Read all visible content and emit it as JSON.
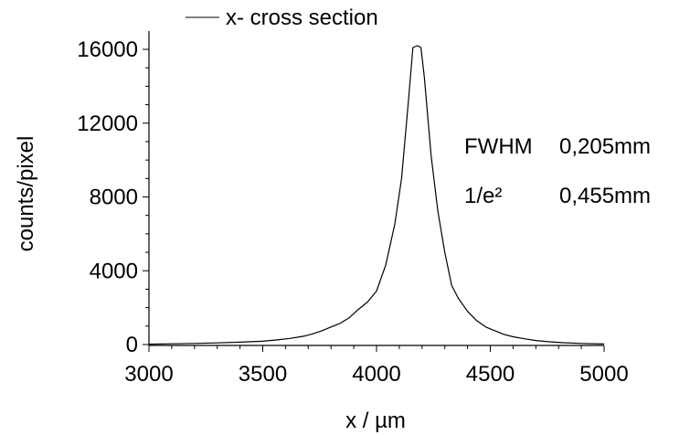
{
  "chart_data": {
    "type": "line",
    "title": "",
    "xlabel": "x / µm",
    "ylabel": "counts/pixel",
    "xlim": [
      3000,
      5000
    ],
    "ylim": [
      0,
      17000
    ],
    "x_ticks": [
      3000,
      3500,
      4000,
      4500,
      5000
    ],
    "x_tick_labels": [
      "3000",
      "3500",
      "4000",
      "4500",
      "5000"
    ],
    "y_ticks": [
      0,
      4000,
      8000,
      12000,
      16000
    ],
    "y_tick_labels": [
      "0",
      "4000",
      "8000",
      "12000",
      "16000"
    ],
    "grid": false,
    "legend": {
      "placement": "top",
      "entries": [
        "x- cross section"
      ]
    },
    "annotations": {
      "fwhm_label": "FWHM",
      "fwhm_value": "0,205mm",
      "e2_label": "1/e²",
      "e2_value": "0,455mm"
    },
    "series": [
      {
        "name": "x- cross section",
        "color": "#000000",
        "x": [
          3000,
          3100,
          3200,
          3300,
          3400,
          3500,
          3560,
          3620,
          3680,
          3720,
          3760,
          3800,
          3840,
          3880,
          3920,
          3960,
          4000,
          4040,
          4080,
          4110,
          4140,
          4160,
          4180,
          4195,
          4210,
          4240,
          4270,
          4300,
          4330,
          4360,
          4400,
          4440,
          4480,
          4520,
          4560,
          4600,
          4650,
          4700,
          4760,
          4820,
          4900,
          5000
        ],
        "y": [
          20,
          40,
          60,
          90,
          130,
          180,
          250,
          330,
          450,
          580,
          750,
          950,
          1150,
          1450,
          1900,
          2300,
          2900,
          4300,
          6500,
          9000,
          13200,
          16100,
          16200,
          16100,
          14500,
          10200,
          7200,
          5000,
          3200,
          2500,
          1800,
          1300,
          950,
          750,
          550,
          420,
          310,
          220,
          150,
          100,
          60,
          30
        ]
      }
    ]
  }
}
